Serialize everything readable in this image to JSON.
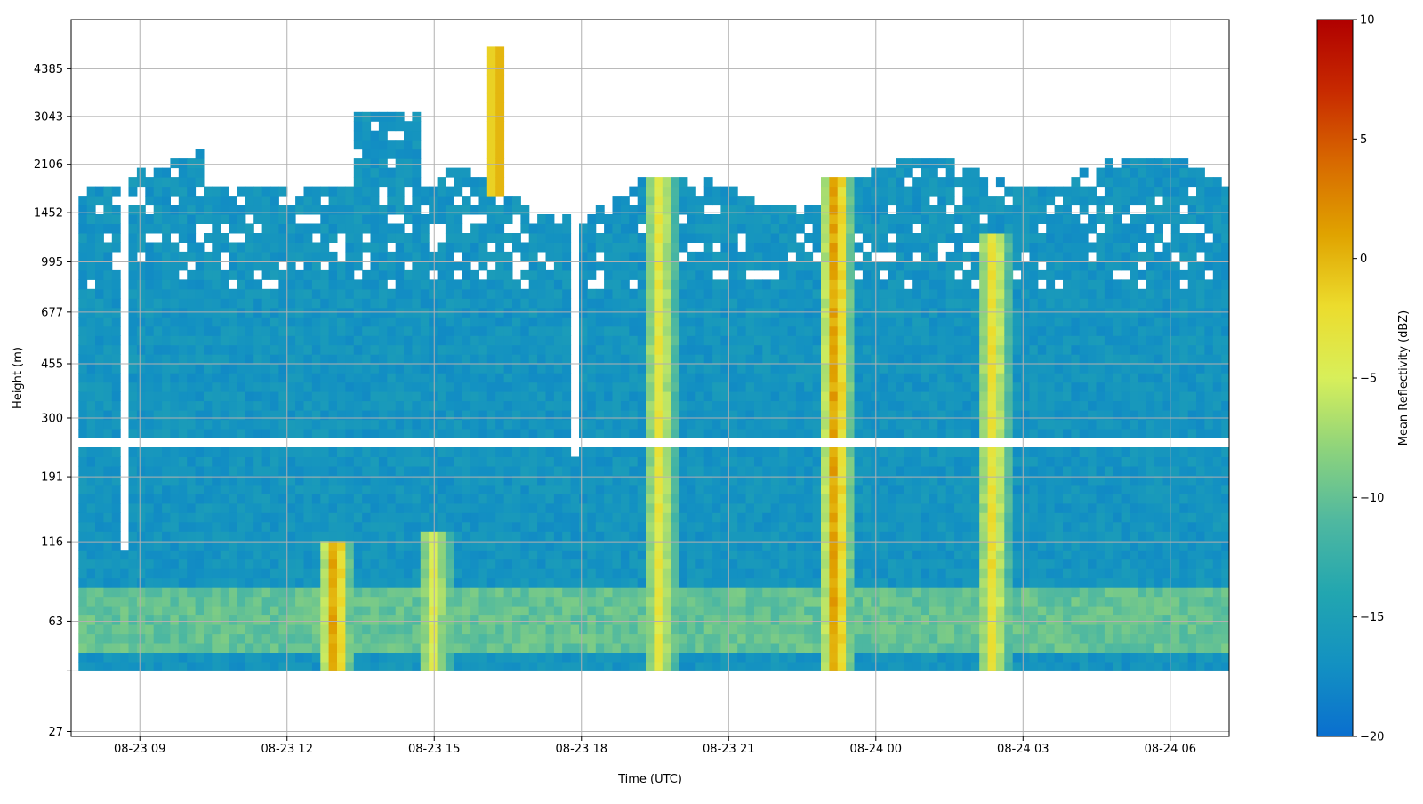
{
  "chart_data": {
    "type": "heatmap",
    "title": "",
    "xlabel": "Time (UTC)",
    "ylabel": "Height (m)",
    "x_ticks": [
      "08-23 09",
      "08-23 12",
      "08-23 15",
      "08-23 18",
      "08-23 21",
      "08-24 00",
      "08-24 03",
      "08-24 06"
    ],
    "x_range_hours": [
      -1.4,
      22.2
    ],
    "x_tick_hours": [
      0,
      3,
      6,
      9,
      12,
      15,
      18,
      21
    ],
    "y_scale": "log",
    "y_ticks": [
      27,
      43,
      63,
      116,
      191,
      300,
      455,
      677,
      995,
      1452,
      2106,
      3043,
      4385
    ],
    "y_tick_labels": [
      "27",
      "",
      "63",
      "116",
      "191",
      "300",
      "455",
      "677",
      "995",
      "1452",
      "2106",
      "3043",
      "4385"
    ],
    "y_range": [
      26,
      6400
    ],
    "colorbar": {
      "label": "Mean Reflectivity (dBZ)",
      "min": -20,
      "max": 10,
      "ticks": [
        10,
        5,
        0,
        -5,
        -10,
        -15,
        -20
      ],
      "tick_labels": [
        "10",
        "5",
        "0",
        "−5",
        "−10",
        "−15",
        "−20"
      ],
      "colormap_stops": [
        "#0a6fcf",
        "#1391c2",
        "#22a6b0",
        "#4fb8a0",
        "#8dd37c",
        "#d8ef5a",
        "#ecdc2d",
        "#e0a300",
        "#d86a00",
        "#c82a00",
        "#b00000"
      ]
    },
    "grid": true,
    "gap_height_range_m": [
      240,
      262
    ],
    "surface_clutter_band_m": [
      48,
      82
    ],
    "low_reflectivity_band_dbz": -16.5,
    "features": [
      {
        "name": "precip_column",
        "time_hours": 3.9,
        "height_top_m": 120,
        "peak_dbz": 3
      },
      {
        "name": "precip_column",
        "time_hours": 5.9,
        "height_top_m": 130,
        "peak_dbz": -4
      },
      {
        "name": "precip_column",
        "time_hours": 10.5,
        "height_top_m": 1900,
        "peak_dbz": -3
      },
      {
        "name": "precip_column",
        "time_hours": 14.1,
        "height_top_m": 1900,
        "peak_dbz": 3
      },
      {
        "name": "precip_column",
        "time_hours": 17.3,
        "height_top_m": 1200,
        "peak_dbz": -2
      },
      {
        "name": "elevated_plume",
        "time_hours": 7.2,
        "height_range_m": [
          1700,
          5200
        ],
        "peak_dbz": 1
      }
    ]
  }
}
